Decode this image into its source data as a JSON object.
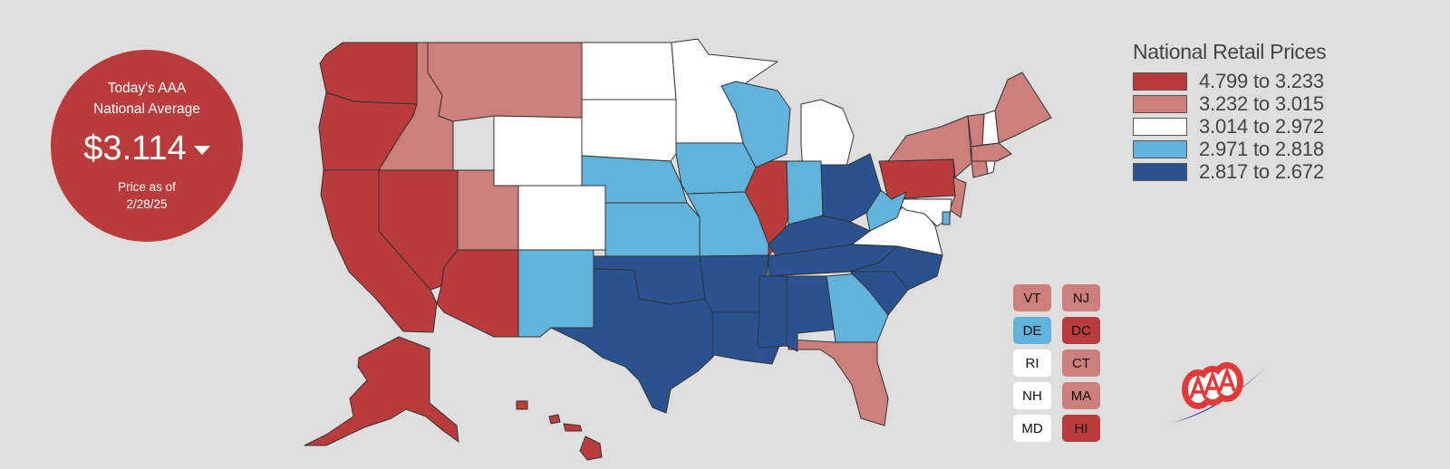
{
  "average": {
    "title_line1": "Today's AAA",
    "title_line2": "National Average",
    "price": "$3.114",
    "trend": "down",
    "date_line1": "Price as of",
    "date_line2": "2/28/25"
  },
  "legend": {
    "title": "National Retail Prices",
    "ranges": [
      {
        "label": "4.799 to 3.233",
        "color": "#b93b3b"
      },
      {
        "label": "3.232 to 3.015",
        "color": "#cc7f7b"
      },
      {
        "label": "3.014 to 2.972",
        "color": "#ffffff"
      },
      {
        "label": "2.971 to 2.818",
        "color": "#62b3dc"
      },
      {
        "label": "2.817 to 2.672",
        "color": "#2a5190"
      }
    ]
  },
  "small_states": [
    {
      "code": "VT",
      "color": "#cc7f7b"
    },
    {
      "code": "NJ",
      "color": "#cc7f7b"
    },
    {
      "code": "DE",
      "color": "#62b3dc"
    },
    {
      "code": "DC",
      "color": "#b93b3b"
    },
    {
      "code": "RI",
      "color": "#ffffff"
    },
    {
      "code": "CT",
      "color": "#cc7f7b"
    },
    {
      "code": "NH",
      "color": "#ffffff"
    },
    {
      "code": "MA",
      "color": "#cc7f7b"
    },
    {
      "code": "MD",
      "color": "#ffffff"
    },
    {
      "code": "HI",
      "color": "#b93b3b"
    }
  ],
  "states": [
    {
      "code": "WA",
      "tier": 0
    },
    {
      "code": "OR",
      "tier": 0
    },
    {
      "code": "CA",
      "tier": 0
    },
    {
      "code": "NV",
      "tier": 0
    },
    {
      "code": "AZ",
      "tier": 0
    },
    {
      "code": "IL",
      "tier": 0
    },
    {
      "code": "PA",
      "tier": 0
    },
    {
      "code": "AK",
      "tier": 0
    },
    {
      "code": "HI",
      "tier": 0
    },
    {
      "code": "ID",
      "tier": 1
    },
    {
      "code": "MT",
      "tier": 1
    },
    {
      "code": "UT",
      "tier": 1
    },
    {
      "code": "NY",
      "tier": 1
    },
    {
      "code": "ME",
      "tier": 1
    },
    {
      "code": "FL",
      "tier": 1
    },
    {
      "code": "VT",
      "tier": 1
    },
    {
      "code": "NJ",
      "tier": 1
    },
    {
      "code": "CT",
      "tier": 1
    },
    {
      "code": "MA",
      "tier": 1
    },
    {
      "code": "WY",
      "tier": 2
    },
    {
      "code": "CO",
      "tier": 2
    },
    {
      "code": "ND",
      "tier": 2
    },
    {
      "code": "SD",
      "tier": 2
    },
    {
      "code": "MN",
      "tier": 2
    },
    {
      "code": "MI",
      "tier": 2
    },
    {
      "code": "VA",
      "tier": 2
    },
    {
      "code": "NH",
      "tier": 2
    },
    {
      "code": "MD",
      "tier": 2
    },
    {
      "code": "RI",
      "tier": 2
    },
    {
      "code": "NE",
      "tier": 3
    },
    {
      "code": "KS",
      "tier": 3
    },
    {
      "code": "NM",
      "tier": 3
    },
    {
      "code": "IA",
      "tier": 3
    },
    {
      "code": "MO",
      "tier": 3
    },
    {
      "code": "WI",
      "tier": 3
    },
    {
      "code": "IN",
      "tier": 3
    },
    {
      "code": "WV",
      "tier": 3
    },
    {
      "code": "GA",
      "tier": 3
    },
    {
      "code": "DE",
      "tier": 3
    },
    {
      "code": "TX",
      "tier": 4
    },
    {
      "code": "OK",
      "tier": 4
    },
    {
      "code": "AR",
      "tier": 4
    },
    {
      "code": "LA",
      "tier": 4
    },
    {
      "code": "MS",
      "tier": 4
    },
    {
      "code": "AL",
      "tier": 4
    },
    {
      "code": "TN",
      "tier": 4
    },
    {
      "code": "KY",
      "tier": 4
    },
    {
      "code": "OH",
      "tier": 4
    },
    {
      "code": "NC",
      "tier": 4
    },
    {
      "code": "SC",
      "tier": 4
    }
  ]
}
